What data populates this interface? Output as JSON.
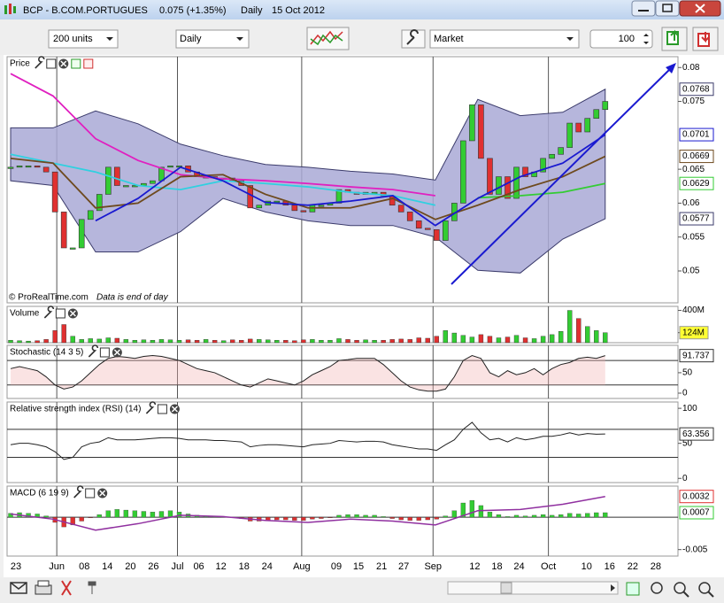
{
  "window": {
    "symbol": "BCP - B.COM.PORTUGUES",
    "quote": "0.075 (+1.35%)",
    "period": "Daily",
    "date": "15 Oct 2012"
  },
  "toolbar": {
    "units": "200 units",
    "period": "Daily",
    "order": "Market",
    "quantity": "100"
  },
  "x_axis": {
    "xlim": [
      -0.4,
      75.2
    ],
    "xticks": [
      {
        "value": 0.6,
        "label": "23"
      },
      {
        "value": 5.2,
        "label": "Jun"
      },
      {
        "value": 8.3,
        "label": "08"
      },
      {
        "value": 10.9,
        "label": "14"
      },
      {
        "value": 13.5,
        "label": "20"
      },
      {
        "value": 16.1,
        "label": "26"
      },
      {
        "value": 18.8,
        "label": "Jul"
      },
      {
        "value": 21.2,
        "label": "06"
      },
      {
        "value": 23.7,
        "label": "12"
      },
      {
        "value": 26.3,
        "label": "18"
      },
      {
        "value": 28.9,
        "label": "24"
      },
      {
        "value": 32.8,
        "label": "Aug"
      },
      {
        "value": 36.7,
        "label": "09"
      },
      {
        "value": 39.2,
        "label": "15"
      },
      {
        "value": 41.8,
        "label": "21"
      },
      {
        "value": 44.3,
        "label": "27"
      },
      {
        "value": 47.6,
        "label": "Sep"
      },
      {
        "value": 52.3,
        "label": "12"
      },
      {
        "value": 54.8,
        "label": "18"
      },
      {
        "value": 57.3,
        "label": "24"
      },
      {
        "value": 60.6,
        "label": "Oct"
      },
      {
        "value": 64.9,
        "label": "10"
      },
      {
        "value": 67.5,
        "label": "16"
      },
      {
        "value": 70.1,
        "label": "22"
      },
      {
        "value": 72.7,
        "label": "28"
      }
    ]
  },
  "chart_data": [
    {
      "type": "candlestick",
      "title": "Price",
      "source": "© ProRealTime.com",
      "note": "Data is end of day",
      "color_up": "#33cc33",
      "color_down": "#e03030",
      "closes": [
        0.0653,
        0.0655,
        0.0655,
        0.0653,
        0.0646,
        0.0587,
        0.0534,
        0.0534,
        0.0576,
        0.0589,
        0.0613,
        0.0653,
        0.0626,
        0.0626,
        0.0626,
        0.0629,
        0.0633,
        0.0653,
        0.0655,
        0.0655,
        0.0646,
        0.0639,
        0.0639,
        0.0637,
        0.0637,
        0.0633,
        0.0626,
        0.0593,
        0.0597,
        0.0603,
        0.0603,
        0.0597,
        0.0589,
        0.0587,
        0.0597,
        0.0597,
        0.06,
        0.062,
        0.0616,
        0.0613,
        0.0616,
        0.0616,
        0.0611,
        0.0597,
        0.0587,
        0.0574,
        0.0563,
        0.0561,
        0.0545,
        0.0574,
        0.06,
        0.0692,
        0.0745,
        0.0666,
        0.0613,
        0.0639,
        0.0607,
        0.0653,
        0.0639,
        0.0646,
        0.0666,
        0.0672,
        0.0682,
        0.0718,
        0.0705,
        0.0725,
        0.0738,
        0.075
      ],
      "band": {
        "color": "#a9a9d6",
        "upper": [
          0.0711,
          0.0711,
          0.0736,
          0.0717,
          0.0687,
          0.067,
          0.0657,
          0.0653,
          0.0647,
          0.0643,
          0.0634,
          0.0753,
          0.0729,
          0.0734,
          0.0768
        ],
        "lower": [
          0.0633,
          0.0626,
          0.0528,
          0.0528,
          0.0558,
          0.0607,
          0.0587,
          0.0574,
          0.0567,
          0.0567,
          0.055,
          0.0501,
          0.0497,
          0.0547,
          0.0577
        ]
      },
      "series": [
        {
          "color": "#e020c0",
          "values": [
            0.0791,
            0.0758,
            0.0695,
            0.0663,
            0.0642,
            0.0636,
            0.0633,
            0.0629,
            0.0624,
            0.062,
            0.0611,
            null,
            null,
            null,
            null
          ]
        },
        {
          "color": "#33cc33",
          "values": [
            null,
            null,
            null,
            null,
            null,
            null,
            null,
            null,
            null,
            null,
            null,
            0.0608,
            0.0611,
            0.0616,
            0.0629
          ]
        },
        {
          "color": "#30d0e0",
          "values": [
            0.0672,
            0.0659,
            0.0646,
            0.0626,
            0.062,
            0.0633,
            0.0629,
            0.0624,
            0.0616,
            0.0611,
            0.0597,
            null,
            null,
            null,
            null
          ]
        },
        {
          "color": "#6e4a1e",
          "values": [
            0.0666,
            0.0659,
            0.0593,
            0.06,
            0.0639,
            0.0642,
            0.0613,
            0.0593,
            0.0593,
            0.0607,
            0.0576,
            0.0597,
            0.062,
            0.0639,
            0.0669
          ]
        },
        {
          "color": "#1a1ad0",
          "values": [
            null,
            null,
            0.0574,
            0.0607,
            0.0653,
            0.0633,
            0.0601,
            0.0597,
            0.0603,
            0.0611,
            0.0567,
            0.0607,
            0.0639,
            0.0659,
            0.0701
          ]
        }
      ],
      "ylim": [
        0.0453,
        0.0816
      ],
      "yticks": [
        0.05,
        0.055,
        0.06,
        0.065,
        0.075,
        0.08
      ]
    },
    {
      "type": "bar",
      "title": "Volume",
      "values": [
        30,
        25,
        20,
        25,
        40,
        150,
        225,
        80,
        40,
        50,
        45,
        60,
        55,
        40,
        30,
        35,
        30,
        40,
        35,
        30,
        35,
        30,
        40,
        30,
        25,
        35,
        30,
        45,
        40,
        35,
        30,
        30,
        25,
        35,
        40,
        30,
        30,
        50,
        40,
        30,
        35,
        30,
        30,
        40,
        45,
        40,
        60,
        55,
        80,
        150,
        120,
        90,
        70,
        100,
        80,
        60,
        70,
        90,
        60,
        50,
        80,
        100,
        140,
        400,
        300,
        200,
        150,
        124
      ],
      "ylim": [
        0,
        450
      ],
      "yticks": [
        {
          "value": 400,
          "label": "400M"
        },
        {
          "value": 124,
          "label": "124M",
          "highlight": "#ffff33"
        }
      ]
    },
    {
      "type": "line",
      "title": "Stochastic (14 3 5)",
      "color": "#222222",
      "fill": "#f0b0b0",
      "values": [
        60,
        65,
        60,
        55,
        40,
        20,
        10,
        15,
        30,
        50,
        70,
        85,
        90,
        88,
        85,
        90,
        92,
        90,
        85,
        80,
        70,
        60,
        55,
        50,
        40,
        30,
        20,
        15,
        25,
        35,
        30,
        25,
        20,
        30,
        45,
        55,
        65,
        80,
        82,
        85,
        85,
        85,
        70,
        50,
        30,
        15,
        8,
        5,
        5,
        10,
        40,
        80,
        92,
        85,
        50,
        40,
        55,
        45,
        50,
        60,
        45,
        60,
        70,
        75,
        85,
        88,
        85,
        91.737
      ],
      "levels": [
        20,
        80
      ],
      "ylim": [
        -13,
        117
      ],
      "yticks": [
        0,
        50
      ]
    },
    {
      "type": "line",
      "title": "Relative strength index (RSI) (14)",
      "color": "#222222",
      "values": [
        48,
        50,
        50,
        48,
        45,
        38,
        27,
        30,
        45,
        50,
        52,
        58,
        55,
        55,
        55,
        56,
        57,
        58,
        58,
        57,
        55,
        55,
        55,
        54,
        54,
        53,
        52,
        45,
        47,
        48,
        48,
        47,
        46,
        45,
        48,
        49,
        50,
        54,
        53,
        52,
        53,
        53,
        52,
        48,
        46,
        44,
        42,
        42,
        40,
        48,
        55,
        70,
        80,
        65,
        55,
        57,
        52,
        58,
        55,
        57,
        60,
        60,
        62,
        65,
        62,
        64,
        63,
        63.356
      ],
      "levels": [
        30,
        70
      ],
      "ylim": [
        -6,
        109
      ],
      "yticks": [
        0,
        50,
        100
      ]
    },
    {
      "type": "histogram-line",
      "title": "MACD (6 19 9)",
      "color_up": "#33cc33",
      "color_down": "#e03030",
      "line_color": "#9030a0",
      "values": [
        0.0006,
        0.0007,
        0.0006,
        0.0005,
        0.0002,
        -0.0008,
        -0.0015,
        -0.0012,
        -0.0006,
        -0.0001,
        0.0004,
        0.001,
        0.0012,
        0.0011,
        0.001,
        0.0009,
        0.0008,
        0.0009,
        0.001,
        0.0008,
        0.0005,
        0.0003,
        0.0002,
        0.0001,
        0.0001,
        -0.0001,
        -0.0002,
        -0.0006,
        -0.0006,
        -0.0005,
        -0.0004,
        -0.0004,
        -0.0005,
        -0.0005,
        -0.0003,
        -0.0002,
        -0.0001,
        0.0003,
        0.0004,
        0.0004,
        0.0003,
        0.0003,
        0.0001,
        -0.0002,
        -0.0004,
        -0.0005,
        -0.0005,
        -0.0004,
        -0.0003,
        0.0002,
        0.001,
        0.0022,
        0.0026,
        0.0018,
        0.0008,
        0.0004,
        0.0001,
        0.0003,
        0.0002,
        0.0003,
        0.0004,
        0.0003,
        0.0004,
        0.0006,
        0.0005,
        0.0006,
        0.0007,
        0.0007
      ],
      "line": [
        0.0005,
        -0.0003,
        -0.002,
        -0.001,
        0.0003,
        0.0001,
        -0.0005,
        -0.0008,
        -0.0003,
        -0.0006,
        -0.0012,
        0.001,
        0.0012,
        0.002,
        0.0032
      ],
      "ylim": [
        -0.006,
        0.0048
      ],
      "yticks": [
        -0.005
      ]
    }
  ]
}
